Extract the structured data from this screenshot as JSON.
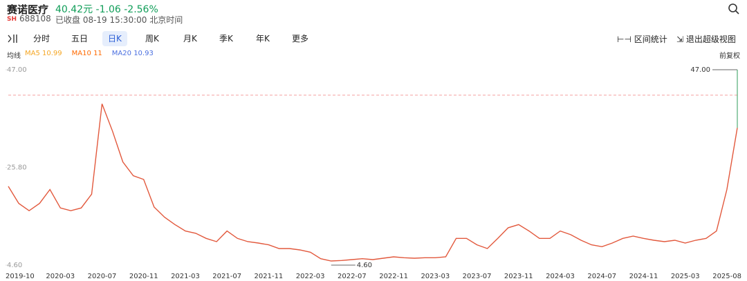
{
  "header": {
    "title": "赛诺医疗",
    "price": "40.42元",
    "change": "-1.06",
    "change_pct": "-2.56%",
    "exchange": "SH",
    "code": "688108",
    "status": "已收盘 08-19 15:30:00 北京时间"
  },
  "toolbar": {
    "tabs": [
      "分时",
      "五日",
      "日K",
      "周K",
      "月K",
      "季K",
      "年K",
      "更多"
    ],
    "range_stats": "区间统计",
    "exit_view": "退出超级视图"
  },
  "indicators": {
    "label": "均线",
    "items": [
      {
        "name": "MA5",
        "value": 10.99,
        "color": "#f5a623"
      },
      {
        "name": "MA10",
        "value": 11,
        "color": "#ff6a00"
      },
      {
        "name": "MA20",
        "value": 10.93,
        "color": "#4a6fe0"
      }
    ],
    "adjust": "前复权"
  },
  "chart_data": {
    "type": "line",
    "color": "#e2583c",
    "categories": [
      "2019-10",
      null,
      null,
      null,
      null,
      "2020-03",
      null,
      null,
      null,
      "2020-07",
      null,
      null,
      null,
      "2020-11",
      null,
      null,
      null,
      "2021-03",
      null,
      null,
      null,
      "2021-07",
      null,
      null,
      null,
      "2021-11",
      null,
      null,
      null,
      "2022-03",
      null,
      null,
      null,
      "2022-07",
      null,
      null,
      null,
      "2022-11",
      null,
      null,
      null,
      "2023-03",
      null,
      null,
      null,
      "2023-07",
      null,
      null,
      null,
      "2023-11",
      null,
      null,
      null,
      "2024-03",
      null,
      null,
      null,
      "2024-07",
      null,
      null,
      null,
      "2024-11",
      null,
      null,
      null,
      "2025-03",
      null,
      null,
      null,
      null,
      "2025-08"
    ],
    "values": [
      21.7,
      18,
      16.4,
      18,
      21,
      17,
      16.4,
      17,
      20,
      39.6,
      33.7,
      27,
      24,
      23.2,
      17.2,
      15,
      13.4,
      12,
      11.5,
      10.4,
      9.7,
      12,
      10.4,
      9.7,
      9.4,
      9,
      8.2,
      8.2,
      7.9,
      7.4,
      6,
      5.5,
      5.6,
      5.8,
      6,
      5.8,
      6.1,
      6.4,
      6.2,
      6.1,
      6.2,
      6.2,
      6.4,
      10.4,
      10.4,
      9,
      8.2,
      10.4,
      12.7,
      13.4,
      12,
      10.4,
      10.4,
      12,
      11.2,
      10,
      9,
      8.6,
      9.4,
      10.4,
      10.9,
      10.4,
      10,
      9.7,
      10,
      9.4,
      10,
      10.4,
      12,
      21,
      34.4
    ],
    "ylim": [
      4.6,
      47
    ],
    "yticks": [
      {
        "value": 47,
        "label": "47.00"
      },
      {
        "value": 25.8,
        "label": "25.80"
      },
      {
        "value": 4.6,
        "label": "4.60"
      }
    ],
    "reference_line": {
      "value": 41.48,
      "color": "#f08080"
    },
    "annotations": [
      {
        "value": 47,
        "label": "47.00"
      },
      {
        "value": 4.6,
        "label": "4.60"
      }
    ]
  }
}
